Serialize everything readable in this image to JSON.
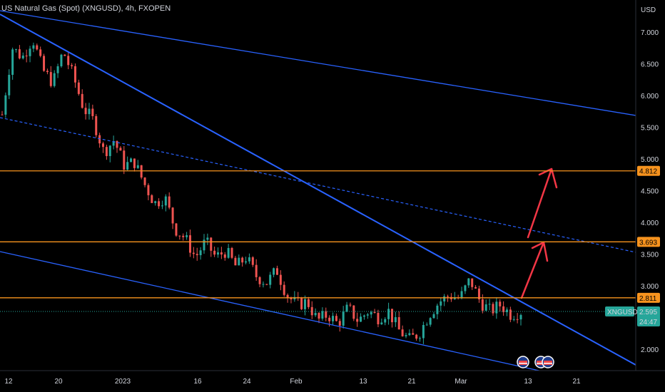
{
  "header": {
    "title": "US Natural Gas (Spot) (XNGUSD), 4h, FXOPEN"
  },
  "axis": {
    "currency": "USD",
    "price_ticks": [
      "7.000",
      "6.500",
      "6.000",
      "5.500",
      "5.000",
      "4.500",
      "4.000",
      "3.500",
      "3.000",
      "2.000"
    ],
    "time_ticks": [
      "12",
      "20",
      "2023",
      "16",
      "24",
      "Feb",
      "13",
      "21",
      "Mar",
      "13",
      "21"
    ]
  },
  "levels": [
    {
      "price": 4.812,
      "label": "4.812",
      "color": "#f7931e"
    },
    {
      "price": 3.693,
      "label": "3.693",
      "color": "#f7931e"
    },
    {
      "price": 2.811,
      "label": "2.811",
      "color": "#f7931e"
    }
  ],
  "current": {
    "symbol": "XNGUSD",
    "price": "2.595",
    "countdown": "24:47",
    "color": "#26a69a"
  },
  "colors": {
    "up": "#26a69a",
    "down": "#ef5350",
    "trendline": "#2962ff",
    "arrow": "#f23645",
    "level": "#f7931e"
  },
  "events": {
    "icon": "us-flag-icon",
    "count": 3
  },
  "chart_data": {
    "type": "candlestick",
    "symbol": "XNGUSD",
    "timeframe": "4h",
    "ylim": [
      1.7,
      7.4
    ],
    "close_path": [
      {
        "x": "Dec 12",
        "y": 5.7
      },
      {
        "x": "Dec 13",
        "y": 6.75
      },
      {
        "x": "Dec 14",
        "y": 6.6
      },
      {
        "x": "Dec 15",
        "y": 6.9
      },
      {
        "x": "Dec 16",
        "y": 6.4
      },
      {
        "x": "Dec 17",
        "y": 6.2
      },
      {
        "x": "Dec 18",
        "y": 6.7
      },
      {
        "x": "Dec 19",
        "y": 6.3
      },
      {
        "x": "Dec 20",
        "y": 5.8
      },
      {
        "x": "Dec 21",
        "y": 5.6
      },
      {
        "x": "Dec 22",
        "y": 5.1
      },
      {
        "x": "Dec 24",
        "y": 5.3
      },
      {
        "x": "Dec 26",
        "y": 4.9
      },
      {
        "x": "Dec 28",
        "y": 4.95
      },
      {
        "x": "Dec 30",
        "y": 4.6
      },
      {
        "x": "Dec 31",
        "y": 4.3
      },
      {
        "x": "Jan 2",
        "y": 4.4
      },
      {
        "x": "Jan 4",
        "y": 3.9
      },
      {
        "x": "Jan 6",
        "y": 3.75
      },
      {
        "x": "Jan 8",
        "y": 3.45
      },
      {
        "x": "Jan 10",
        "y": 3.7
      },
      {
        "x": "Jan 12",
        "y": 3.45
      },
      {
        "x": "Jan 14",
        "y": 3.55
      },
      {
        "x": "Jan 16",
        "y": 3.3
      },
      {
        "x": "Jan 19",
        "y": 3.45
      },
      {
        "x": "Jan 21",
        "y": 3.15
      },
      {
        "x": "Jan 24",
        "y": 3.05
      },
      {
        "x": "Jan 26",
        "y": 3.25
      },
      {
        "x": "Jan 28",
        "y": 2.85
      },
      {
        "x": "Jan 30",
        "y": 2.7
      },
      {
        "x": "Feb 1",
        "y": 2.75
      },
      {
        "x": "Feb 3",
        "y": 2.45
      },
      {
        "x": "Feb 6",
        "y": 2.55
      },
      {
        "x": "Feb 8",
        "y": 2.4
      },
      {
        "x": "Feb 11",
        "y": 2.65
      },
      {
        "x": "Feb 13",
        "y": 2.45
      },
      {
        "x": "Feb 15",
        "y": 2.6
      },
      {
        "x": "Feb 17",
        "y": 2.5
      },
      {
        "x": "Feb 19",
        "y": 2.6
      },
      {
        "x": "Feb 21",
        "y": 2.3
      },
      {
        "x": "Feb 23",
        "y": 2.15
      },
      {
        "x": "Feb 25",
        "y": 2.25
      },
      {
        "x": "Feb 27",
        "y": 2.55
      },
      {
        "x": "Mar 1",
        "y": 2.75
      },
      {
        "x": "Mar 3",
        "y": 2.85
      },
      {
        "x": "Mar 5",
        "y": 2.8
      },
      {
        "x": "Mar 6",
        "y": 3.1
      },
      {
        "x": "Mar 7",
        "y": 2.75
      },
      {
        "x": "Mar 9",
        "y": 2.6
      },
      {
        "x": "Mar 10",
        "y": 2.7
      },
      {
        "x": "Mar 11",
        "y": 2.55
      },
      {
        "x": "Mar 12",
        "y": 2.595
      }
    ],
    "horizontal_levels": [
      4.812,
      3.693,
      2.811
    ],
    "last_price": 2.595
  }
}
